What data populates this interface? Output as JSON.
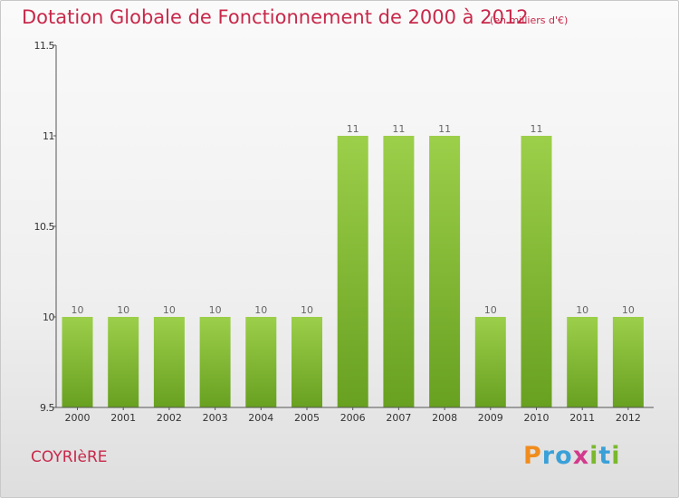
{
  "title": "Dotation Globale de Fonctionnement de 2000 à 2012",
  "unit": "(en milliers d'€)",
  "commune": "COYRIèRE",
  "logo": {
    "text": "Proxiti",
    "colors": [
      "#f08c1e",
      "#3aa0d8",
      "#3aa0d8",
      "#d23a8c",
      "#7ab82e",
      "#3aa0d8",
      "#7ab82e"
    ]
  },
  "colors": {
    "title": "#c8284a",
    "bar_light": "#9ccf4a",
    "bar_dark": "#68a020",
    "axis": "#555555",
    "label": "#666666"
  },
  "chart_data": {
    "type": "bar",
    "title": "Dotation Globale de Fonctionnement de 2000 à 2012",
    "categories": [
      "2000",
      "2001",
      "2002",
      "2003",
      "2004",
      "2005",
      "2006",
      "2007",
      "2008",
      "2009",
      "2010",
      "2011",
      "2012"
    ],
    "values": [
      10,
      10,
      10,
      10,
      10,
      10,
      11,
      11,
      11,
      10,
      11,
      10,
      10
    ],
    "value_labels": [
      "10",
      "10",
      "10",
      "10",
      "10",
      "10",
      "11",
      "11",
      "11",
      "10",
      "11",
      "10",
      "10"
    ],
    "ylim": [
      9.5,
      11.5
    ],
    "yticks": [
      9.5,
      10,
      10.5,
      11,
      11.5
    ],
    "ytick_labels": [
      "9.5",
      "10",
      "10.5",
      "11",
      "11.5"
    ],
    "xlabel": "",
    "ylabel": "",
    "grid": false,
    "legend": false
  }
}
